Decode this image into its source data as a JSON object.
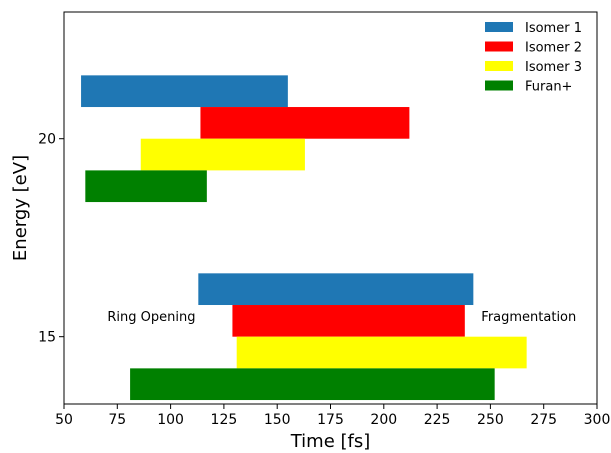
{
  "chart_data": {
    "type": "bar",
    "orientation": "horizontal-floating",
    "xlabel": "Time [fs]",
    "ylabel": "Energy [eV]",
    "xlim": [
      50,
      300
    ],
    "ylim": [
      13.3,
      23.2
    ],
    "x_ticks": [
      50,
      75,
      100,
      125,
      150,
      175,
      200,
      225,
      250,
      275,
      300
    ],
    "y_ticks": [
      15,
      20
    ],
    "legend": {
      "position": "top-right"
    },
    "annotations": [
      {
        "text": "Ring Opening",
        "x": 91,
        "y": 15.4
      },
      {
        "text": "Fragmentation",
        "x": 268,
        "y": 15.4
      }
    ],
    "series": [
      {
        "name": "Isomer 1",
        "color": "#1f77b4",
        "bars": [
          {
            "start": 58,
            "end": 155,
            "y_low": 20.8,
            "y_high": 21.6
          },
          {
            "start": 113,
            "end": 242,
            "y_low": 15.8,
            "y_high": 16.6
          }
        ]
      },
      {
        "name": "Isomer 2",
        "color": "#ff0000",
        "bars": [
          {
            "start": 114,
            "end": 212,
            "y_low": 20.0,
            "y_high": 20.8
          },
          {
            "start": 129,
            "end": 238,
            "y_low": 15.0,
            "y_high": 15.8
          }
        ]
      },
      {
        "name": "Isomer 3",
        "color": "#ffff00",
        "bars": [
          {
            "start": 86,
            "end": 163,
            "y_low": 19.2,
            "y_high": 20.0
          },
          {
            "start": 131,
            "end": 267,
            "y_low": 14.2,
            "y_high": 15.0
          }
        ]
      },
      {
        "name": "Furan+",
        "color": "#008000",
        "bars": [
          {
            "start": 60,
            "end": 117,
            "y_low": 18.4,
            "y_high": 19.2
          },
          {
            "start": 81,
            "end": 252,
            "y_low": 13.4,
            "y_high": 14.2
          }
        ]
      }
    ]
  }
}
